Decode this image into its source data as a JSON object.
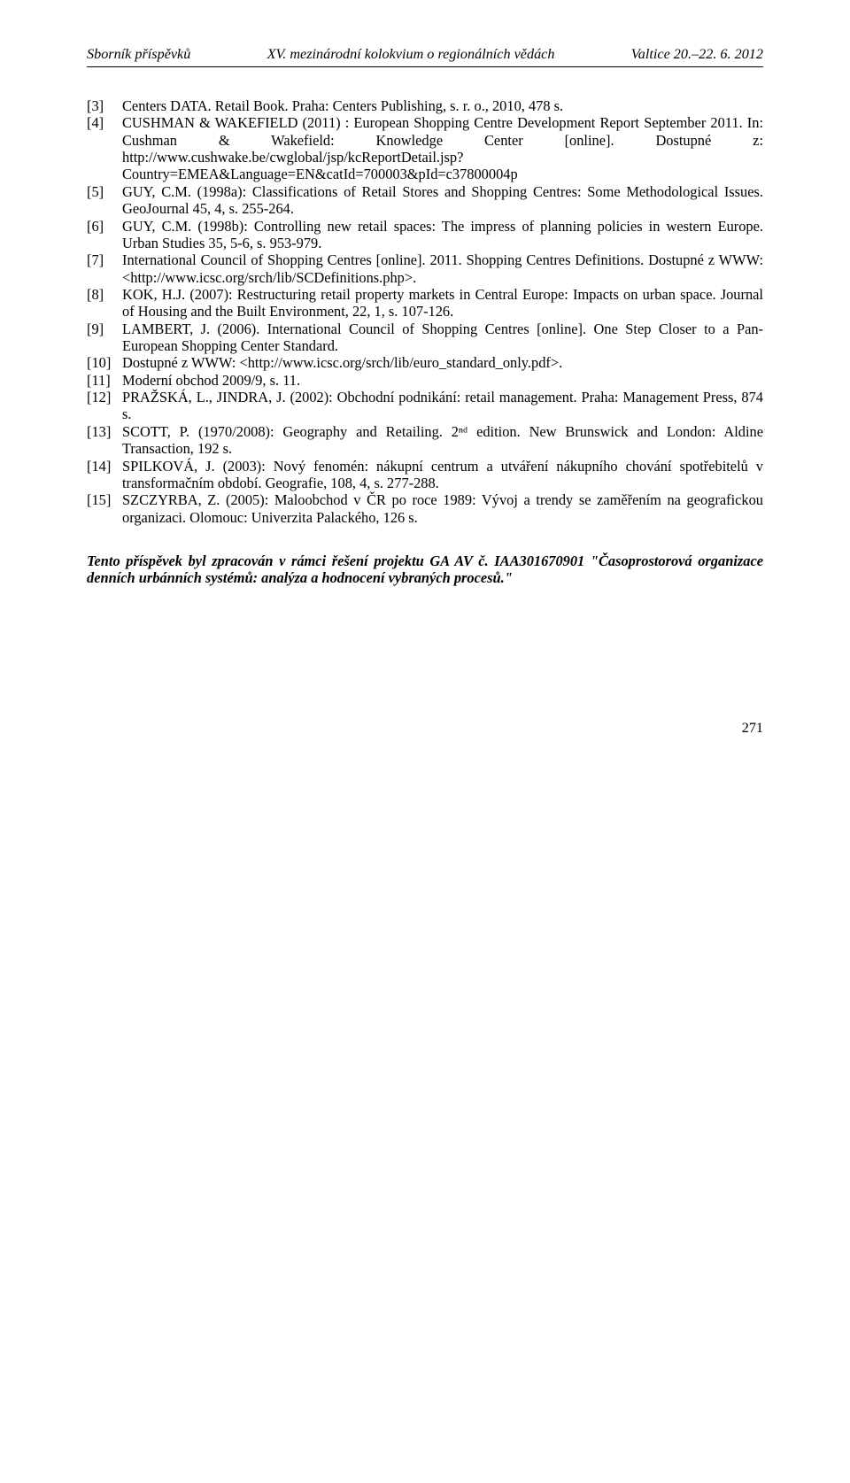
{
  "header": {
    "left": "Sborník příspěvků",
    "center": "XV. mezinárodní kolokvium o regionálních vědách",
    "right": "Valtice 20.–22. 6. 2012"
  },
  "references": [
    {
      "num": "[3]",
      "text": "Centers DATA. Retail Book. Praha: Centers Publishing, s. r. o., 2010, 478 s."
    },
    {
      "num": "[4]",
      "text": "CUSHMAN & WAKEFIELD (2011) : European Shopping Centre Development Report September 2011. In: Cushman & Wakefield: Knowledge Center [online]. Dostupné z: http://www.cushwake.be/cwglobal/jsp/kcReportDetail.jsp?Country=EMEA&Language=EN&catId=700003&pId=c37800004p"
    },
    {
      "num": "[5]",
      "text": "GUY, C.M. (1998a): Classifications of Retail Stores and Shopping Centres: Some Methodological Issues. GeoJournal 45, 4, s. 255-264."
    },
    {
      "num": "[6]",
      "text": "GUY, C.M. (1998b): Controlling new retail spaces: The impress of planning policies in western Europe. Urban Studies 35, 5-6, s. 953-979."
    },
    {
      "num": "[7]",
      "text": "International Council of Shopping Centres [online]. 2011. Shopping Centres Definitions. Dostupné z WWW: <http://www.icsc.org/srch/lib/SCDefinitions.php>."
    },
    {
      "num": "[8]",
      "text": "KOK, H.J. (2007): Restructuring retail property markets in Central Europe: Impacts on urban space. Journal of Housing and the Built Environment, 22, 1, s. 107-126."
    },
    {
      "num": "[9]",
      "text": "LAMBERT, J. (2006). International Council of Shopping Centres [online].  One Step Closer to a Pan-European Shopping Center Standard."
    },
    {
      "num": "[10]",
      "text": "Dostupné z WWW: <http://www.icsc.org/srch/lib/euro_standard_only.pdf>."
    },
    {
      "num": "[11]",
      "text": "Moderní obchod 2009/9, s. 11."
    },
    {
      "num": "[12]",
      "text": "PRAŽSKÁ, L., JINDRA, J. (2002): Obchodní podnikání: retail management. Praha: Management Press,  874 s."
    },
    {
      "num": "[13]",
      "text": "SCOTT, P. (1970/2008): Geography and Retailing. 2ⁿᵈ edition. New Brunswick and London: Aldine Transaction, 192 s."
    },
    {
      "num": "[14]",
      "text": "SPILKOVÁ, J. (2003): Nový fenomén: nákupní centrum a utváření nákupního chování spotřebitelů v transformačním období. Geografie,  108, 4, s. 277-288."
    },
    {
      "num": "[15]",
      "text": "SZCZYRBA, Z. (2005): Maloobchod v ČR po roce 1989: Vývoj a trendy se zaměřením na geografickou organizaci. Olomouc: Univerzita Palackého, 126 s."
    }
  ],
  "ack": "Tento příspěvek byl zpracován v rámci řešení projektu GA AV č. IAA301670901 \"Časoprostorová organizace denních urbánních systémů: analýza a hodnocení vybraných procesů.\"",
  "page_number": "271"
}
